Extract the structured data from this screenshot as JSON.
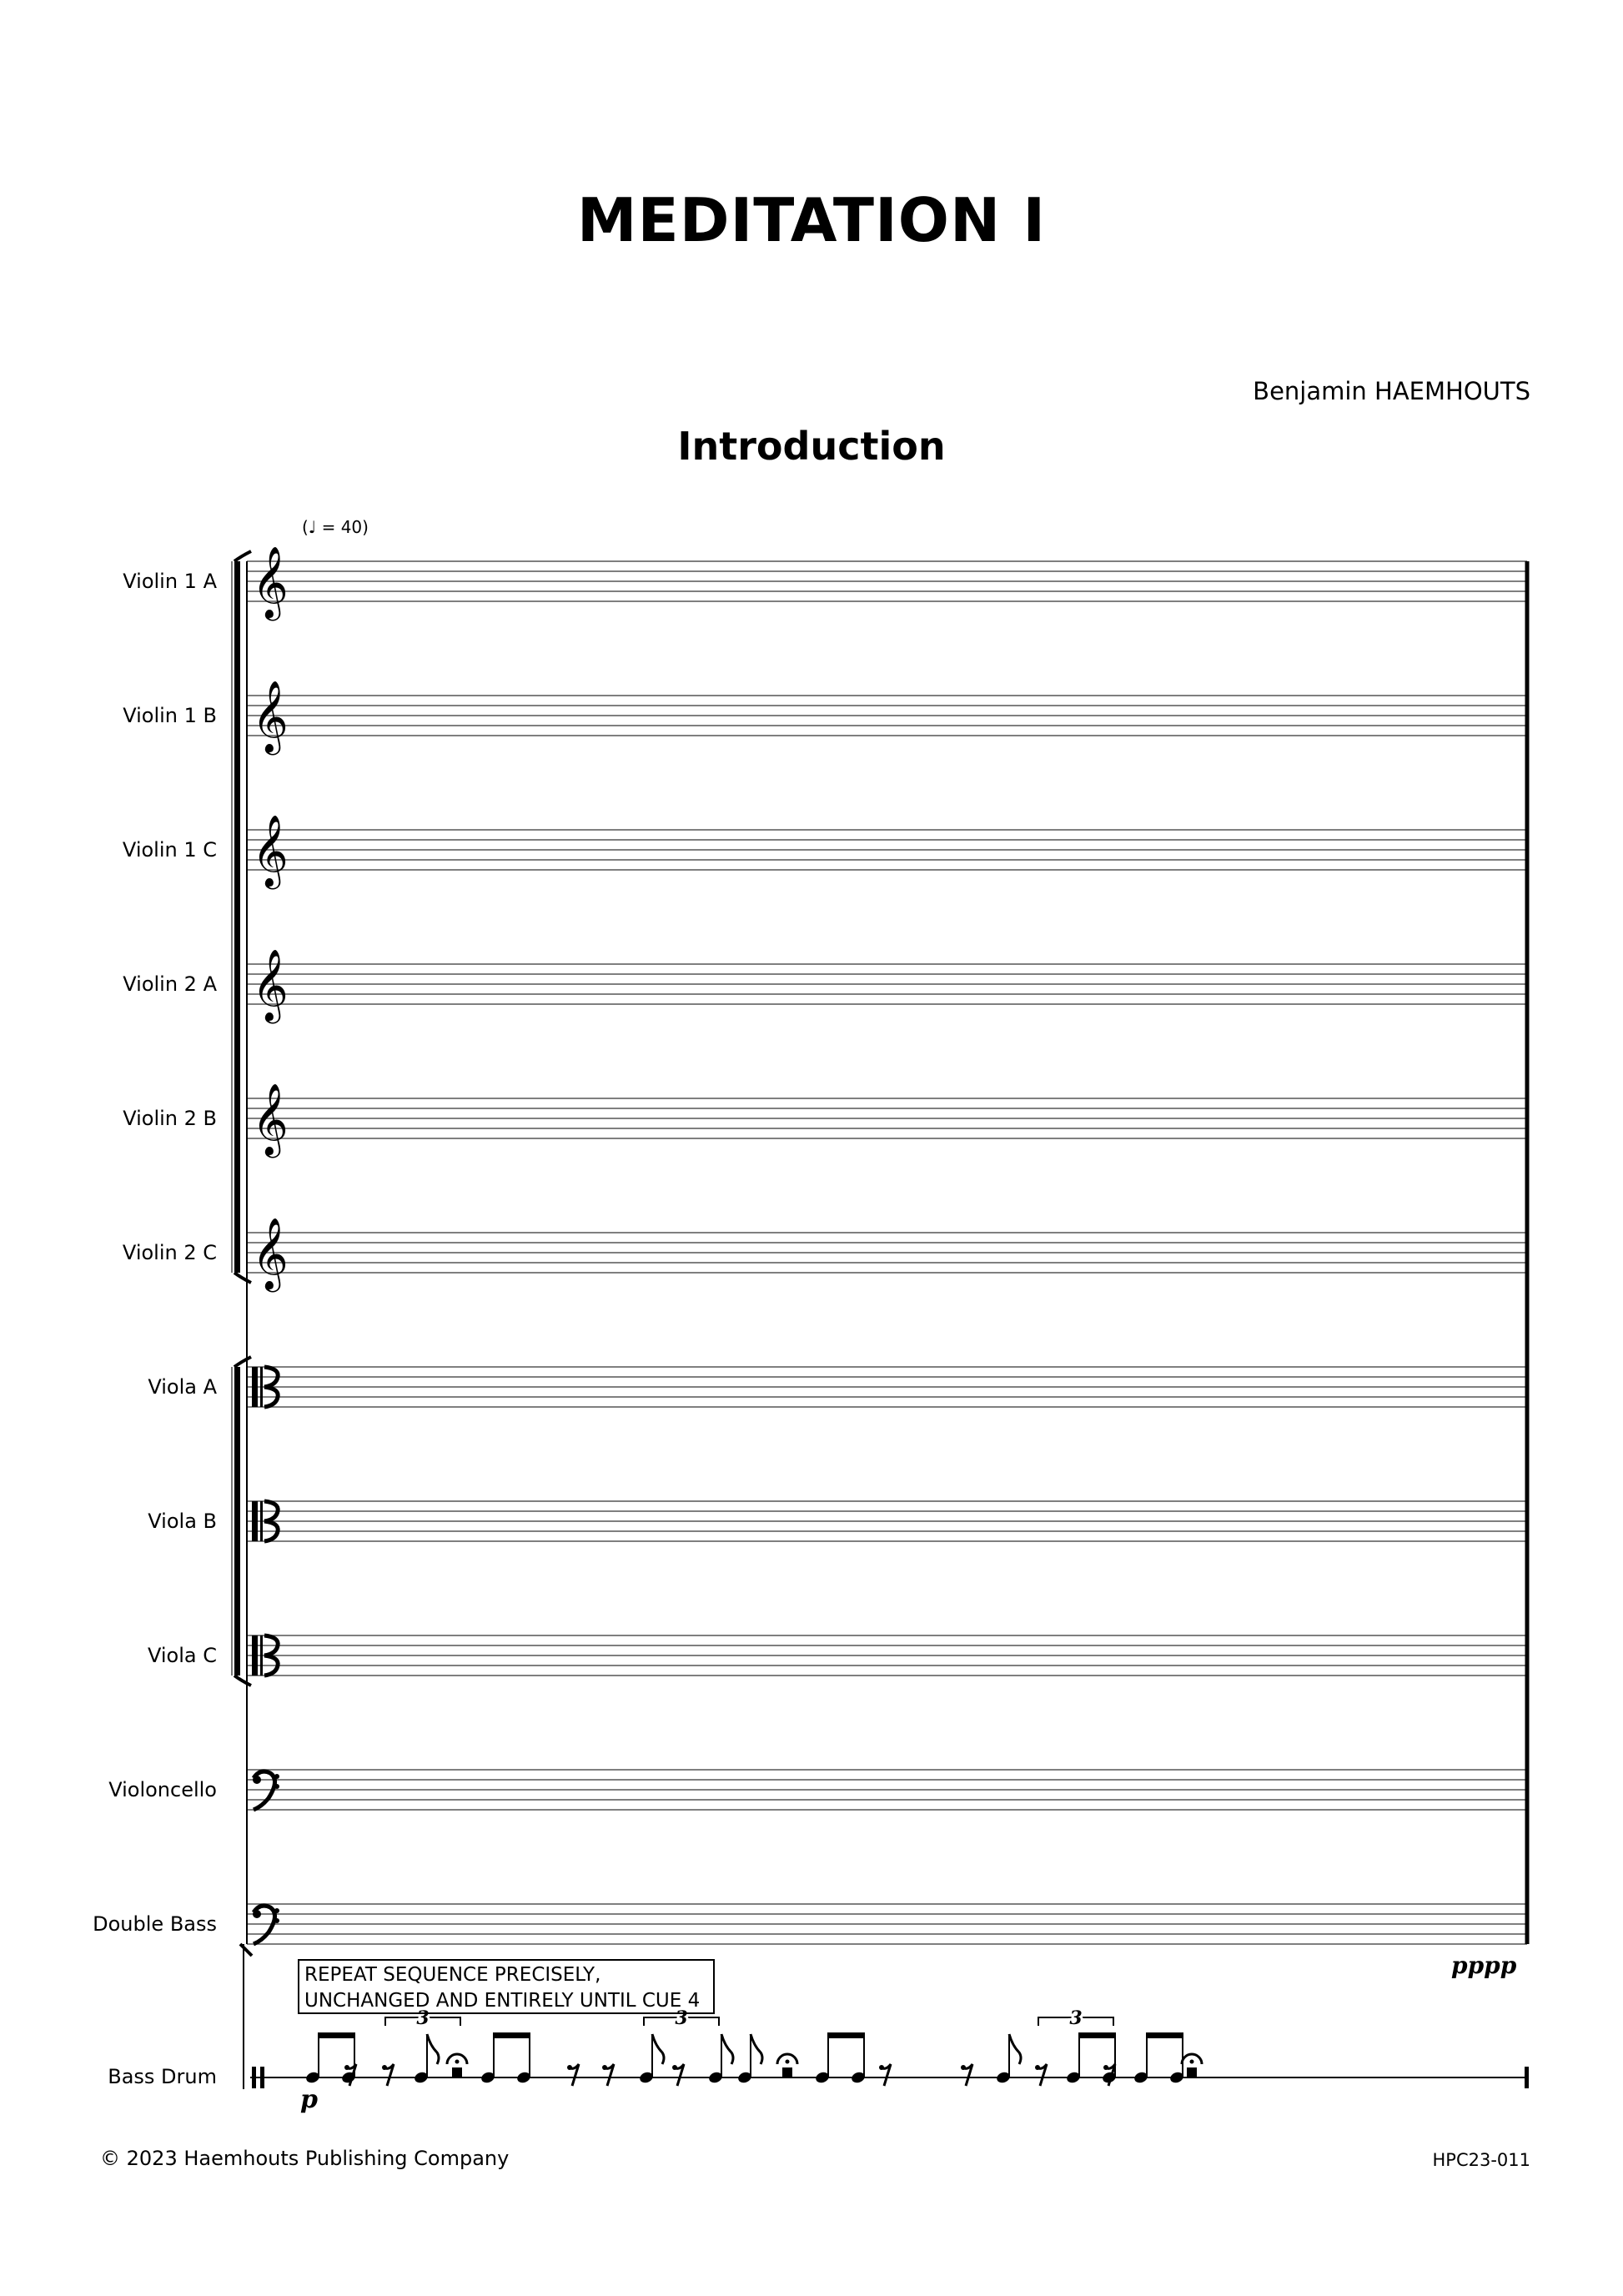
{
  "title": "MEDITATION I",
  "composer": "Benjamin HAEMHOUTS",
  "subtitle": "Introduction",
  "tempo": "(♩ = 40)",
  "instruments": [
    {
      "name": "Violin 1 A",
      "clef": "treble"
    },
    {
      "name": "Violin 1 B",
      "clef": "treble"
    },
    {
      "name": "Violin 1 C",
      "clef": "treble"
    },
    {
      "name": "Violin 2 A",
      "clef": "treble"
    },
    {
      "name": "Violin 2 B",
      "clef": "treble"
    },
    {
      "name": "Violin 2 C",
      "clef": "treble"
    },
    {
      "name": "Viola A",
      "clef": "alto"
    },
    {
      "name": "Viola B",
      "clef": "alto"
    },
    {
      "name": "Viola C",
      "clef": "alto"
    },
    {
      "name": "Violoncello",
      "clef": "bass"
    },
    {
      "name": "Double Bass",
      "clef": "bass"
    }
  ],
  "percussion": {
    "name": "Bass Drum",
    "clef": "percussion",
    "instruction_line1": "REPEAT SEQUENCE  PRECISELY,",
    "instruction_line2": "UNCHANGED AND ENTIRELY  UNTIL CUE 4",
    "start_dynamic": "p",
    "tuplet_label": "3",
    "rhythm": [
      "beam-pair",
      "rest8",
      "rest8",
      "note8",
      "fermata-rest",
      "beam-pair",
      "rest8",
      "rest8",
      "note8",
      "rest8",
      "note8",
      "note8",
      "fermata-rest",
      "beam-pair",
      "rest8",
      "rest8",
      "note8",
      "rest8",
      "beam-pair",
      "rest8",
      "beam-pair",
      "fermata-rest"
    ]
  },
  "strings_dynamic": "pppp",
  "footer": {
    "copyright": "© 2023 Haemhouts Publishing Company",
    "catalog": "HPC23-011"
  }
}
